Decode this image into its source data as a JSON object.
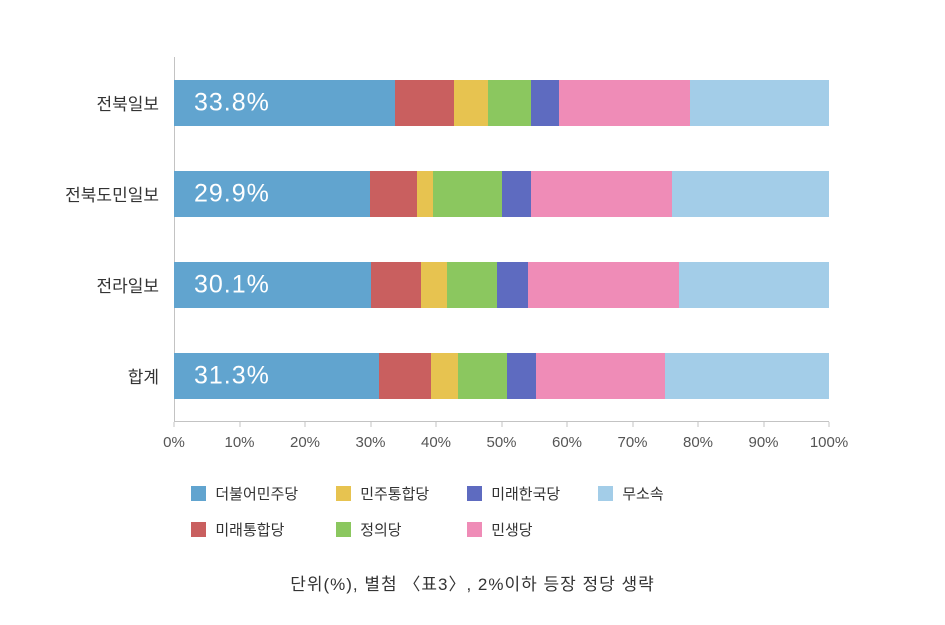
{
  "chart_data": {
    "type": "bar",
    "orientation": "horizontal",
    "stacked": true,
    "title": "",
    "xlabel": "",
    "ylabel": "",
    "xlim": [
      0,
      100
    ],
    "grid": false,
    "categories": [
      "전북일보",
      "전북도민일보",
      "전라일보",
      "합계"
    ],
    "series": [
      {
        "name": "더불어민주당",
        "color": "#61A4CF",
        "values": [
          33.8,
          29.9,
          30.1,
          31.3
        ]
      },
      {
        "name": "미래통합당",
        "color": "#C95F5F",
        "values": [
          9.0,
          7.2,
          7.6,
          8.0
        ]
      },
      {
        "name": "민주통합당",
        "color": "#E7C350",
        "values": [
          5.2,
          2.5,
          4.0,
          4.0
        ]
      },
      {
        "name": "정의당",
        "color": "#8BC75F",
        "values": [
          6.5,
          10.5,
          7.6,
          7.5
        ]
      },
      {
        "name": "미래한국당",
        "color": "#5E6BC0",
        "values": [
          4.3,
          4.4,
          4.8,
          4.4
        ]
      },
      {
        "name": "민생당",
        "color": "#EF8CB7",
        "values": [
          20.0,
          21.5,
          23.0,
          19.8
        ]
      },
      {
        "name": "무소속",
        "color": "#A3CDE8",
        "values": [
          21.2,
          24.0,
          22.9,
          25.0
        ]
      }
    ],
    "bar_labels": [
      "33.8%",
      "29.9%",
      "30.1%",
      "31.3%"
    ],
    "x_ticks": [
      "0%",
      "10%",
      "20%",
      "30%",
      "40%",
      "50%",
      "60%",
      "70%",
      "80%",
      "90%",
      "100%"
    ],
    "legend_position": "bottom",
    "legend_rows": [
      [
        "더불어민주당",
        "민주통합당",
        "미래한국당",
        "무소속"
      ],
      [
        "미래통합당",
        "정의당",
        "민생당"
      ]
    ],
    "caption": "단위(%),  별첨 〈표3〉,  2%이하 등장 정당 생략"
  }
}
